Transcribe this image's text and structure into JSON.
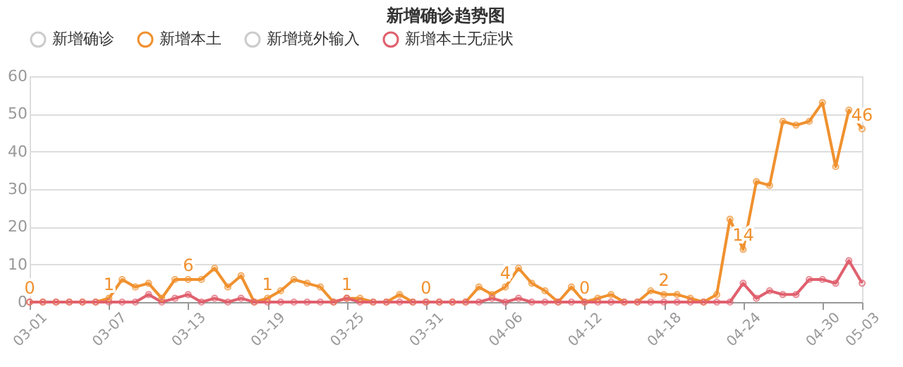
{
  "chart_data": {
    "type": "line",
    "title": "新增确诊趋势图",
    "categories": [
      "03-01",
      null,
      null,
      null,
      null,
      null,
      "03-07",
      null,
      null,
      null,
      null,
      null,
      "03-13",
      null,
      null,
      null,
      null,
      null,
      "03-19",
      null,
      null,
      null,
      null,
      null,
      "03-25",
      null,
      null,
      null,
      null,
      null,
      "03-31",
      null,
      null,
      null,
      null,
      null,
      "04-06",
      null,
      null,
      null,
      null,
      null,
      "04-12",
      null,
      null,
      null,
      null,
      null,
      "04-18",
      null,
      null,
      null,
      null,
      null,
      "04-24",
      null,
      null,
      null,
      null,
      null,
      "04-30",
      null,
      null,
      "05-03"
    ],
    "series": [
      {
        "name": "新增确诊",
        "color": "#cccccc",
        "values": [
          null,
          null,
          null,
          null,
          null,
          null,
          null,
          null,
          null,
          null,
          null,
          null,
          null,
          null,
          null,
          null,
          null,
          null,
          null,
          null,
          null,
          null,
          null,
          null,
          null,
          null,
          null,
          null,
          null,
          null,
          null,
          null,
          null,
          null,
          null,
          null,
          null,
          null,
          null,
          null,
          null,
          null,
          null,
          null,
          null,
          null,
          null,
          null,
          null,
          null,
          null,
          null,
          null,
          null,
          null,
          null,
          null,
          null,
          null,
          null,
          null,
          null,
          null,
          null
        ]
      },
      {
        "name": "新增本土",
        "color": "#f0912f",
        "values": [
          0,
          0,
          0,
          0,
          0,
          0,
          1,
          6,
          4,
          5,
          1,
          6,
          6,
          6,
          9,
          4,
          7,
          0,
          1,
          3,
          6,
          5,
          4,
          0,
          1,
          1,
          0,
          0,
          2,
          0,
          0,
          0,
          0,
          0,
          4,
          2,
          4,
          9,
          5,
          3,
          0,
          4,
          0,
          1,
          2,
          0,
          0,
          3,
          2,
          2,
          1,
          0,
          2,
          22,
          14,
          32,
          31,
          48,
          47,
          48,
          53,
          36,
          51,
          46
        ],
        "value_labels": [
          "0",
          null,
          null,
          null,
          null,
          null,
          "1",
          null,
          null,
          null,
          null,
          null,
          "6",
          null,
          null,
          null,
          null,
          null,
          "1",
          null,
          null,
          null,
          null,
          null,
          "1",
          null,
          null,
          null,
          null,
          null,
          "0",
          null,
          null,
          null,
          null,
          null,
          "4",
          null,
          null,
          null,
          null,
          null,
          "0",
          null,
          null,
          null,
          null,
          null,
          "2",
          null,
          null,
          null,
          null,
          null,
          "14",
          null,
          null,
          null,
          null,
          null,
          null,
          null,
          null,
          "46"
        ]
      },
      {
        "name": "新增境外输入",
        "color": "#cccccc",
        "values": [
          null,
          null,
          null,
          null,
          null,
          null,
          null,
          null,
          null,
          null,
          null,
          null,
          null,
          null,
          null,
          null,
          null,
          null,
          null,
          null,
          null,
          null,
          null,
          null,
          null,
          null,
          null,
          null,
          null,
          null,
          null,
          null,
          null,
          null,
          null,
          null,
          null,
          null,
          null,
          null,
          null,
          null,
          null,
          null,
          null,
          null,
          null,
          null,
          null,
          null,
          null,
          null,
          null,
          null,
          null,
          null,
          null,
          null,
          null,
          null,
          null,
          null,
          null,
          null
        ]
      },
      {
        "name": "新增本土无症状",
        "color": "#e0606e",
        "values": [
          0,
          0,
          0,
          0,
          0,
          0,
          0,
          0,
          0,
          2,
          0,
          1,
          2,
          0,
          1,
          0,
          1,
          0,
          0,
          0,
          0,
          0,
          0,
          0,
          1,
          0,
          0,
          0,
          0,
          0,
          0,
          0,
          0,
          0,
          0,
          1,
          0,
          1,
          0,
          0,
          0,
          0,
          0,
          0,
          0,
          0,
          0,
          0,
          0,
          0,
          0,
          0,
          0,
          0,
          5,
          1,
          3,
          2,
          2,
          6,
          6,
          5,
          11,
          5
        ]
      }
    ],
    "ylim": [
      0,
      60
    ],
    "yticks": [
      0,
      10,
      20,
      30,
      40,
      50,
      60
    ],
    "grid": "y",
    "legend": "top",
    "marker": "circle",
    "line_style": "solid"
  }
}
